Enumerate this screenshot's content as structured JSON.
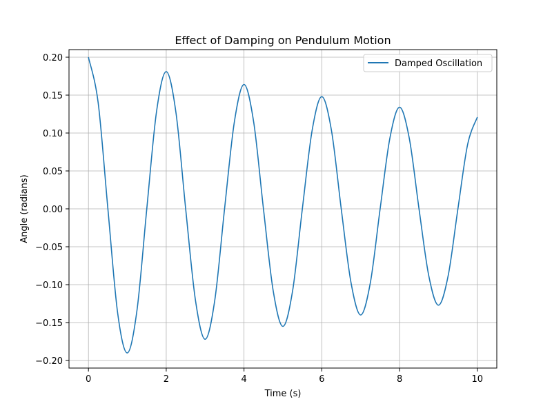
{
  "chart_data": {
    "type": "line",
    "title": "Effect of Damping on Pendulum Motion",
    "xlabel": "Time (s)",
    "ylabel": "Angle (radians)",
    "xlim": [
      -0.5,
      10.5
    ],
    "ylim": [
      -0.21,
      0.21
    ],
    "x_ticks": [
      0,
      2,
      4,
      6,
      8,
      10
    ],
    "x_tick_labels": [
      "0",
      "2",
      "4",
      "6",
      "8",
      "10"
    ],
    "y_ticks": [
      -0.2,
      -0.15,
      -0.1,
      -0.05,
      0.0,
      0.05,
      0.1,
      0.15,
      0.2
    ],
    "y_tick_labels": [
      "−0.20",
      "−0.15",
      "−0.10",
      "−0.05",
      "0.00",
      "0.05",
      "0.10",
      "0.15",
      "0.20"
    ],
    "grid": true,
    "legend": {
      "position": "top-right"
    },
    "series": [
      {
        "name": "Damped Oscillation",
        "color": "#1f77b4",
        "x": [
          0,
          0.25,
          0.5,
          0.75,
          1,
          1.25,
          1.5,
          1.75,
          2,
          2.25,
          2.5,
          2.75,
          3,
          3.25,
          3.5,
          3.75,
          4,
          4.25,
          4.5,
          4.75,
          5,
          5.25,
          5.5,
          5.75,
          6,
          6.25,
          6.5,
          6.75,
          7,
          7.25,
          7.5,
          7.75,
          8,
          8.25,
          8.5,
          8.75,
          9,
          9.25,
          9.5,
          9.75,
          10
        ],
        "y": [
          0.2,
          0.14,
          0.0,
          -0.137,
          -0.19,
          -0.133,
          0.0,
          0.128,
          0.181,
          0.127,
          0.0,
          -0.12,
          -0.172,
          -0.12,
          0.0,
          0.114,
          0.164,
          0.114,
          0.0,
          -0.108,
          -0.155,
          -0.108,
          0.0,
          0.103,
          0.148,
          0.103,
          0.0,
          -0.097,
          -0.14,
          -0.097,
          0.0,
          0.093,
          0.134,
          0.093,
          0.0,
          -0.088,
          -0.127,
          -0.088,
          0.0,
          0.085,
          0.121
        ]
      }
    ]
  }
}
